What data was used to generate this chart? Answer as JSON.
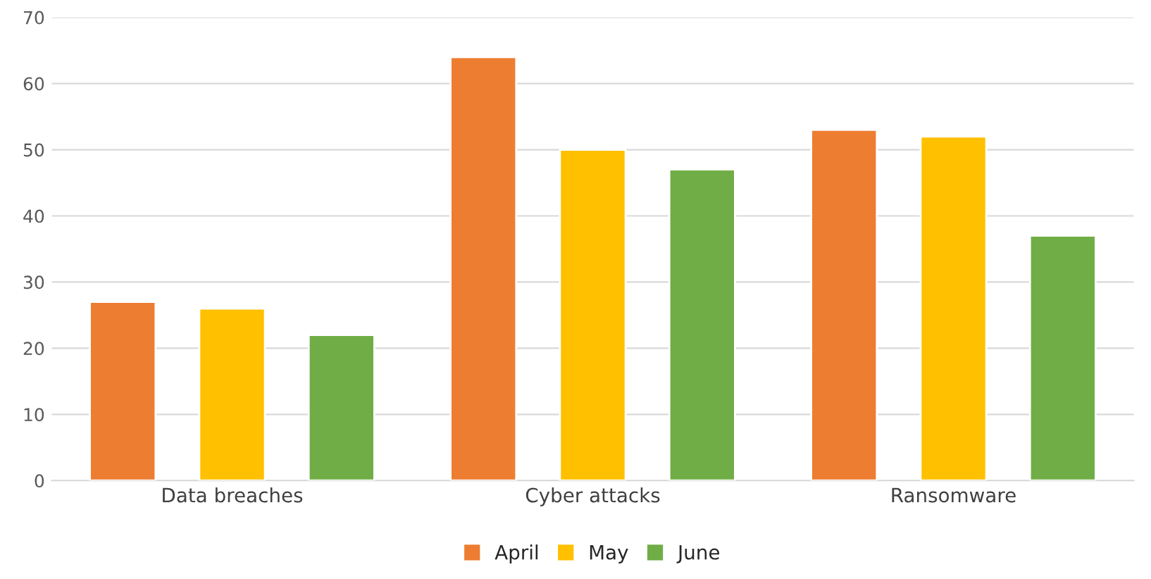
{
  "chart_data": {
    "type": "bar",
    "categories": [
      "Data breaches",
      "Cyber attacks",
      "Ransomware"
    ],
    "series": [
      {
        "name": "April",
        "color": "#ed7d31",
        "values": [
          27,
          64,
          53
        ]
      },
      {
        "name": "May",
        "color": "#ffc000",
        "values": [
          26,
          50,
          52
        ]
      },
      {
        "name": "June",
        "color": "#70ad47",
        "values": [
          22,
          47,
          37
        ]
      }
    ],
    "ylim": [
      0,
      70
    ],
    "yticks": [
      0,
      10,
      20,
      30,
      40,
      50,
      60,
      70
    ],
    "grid": "y",
    "legend": "bottom"
  }
}
